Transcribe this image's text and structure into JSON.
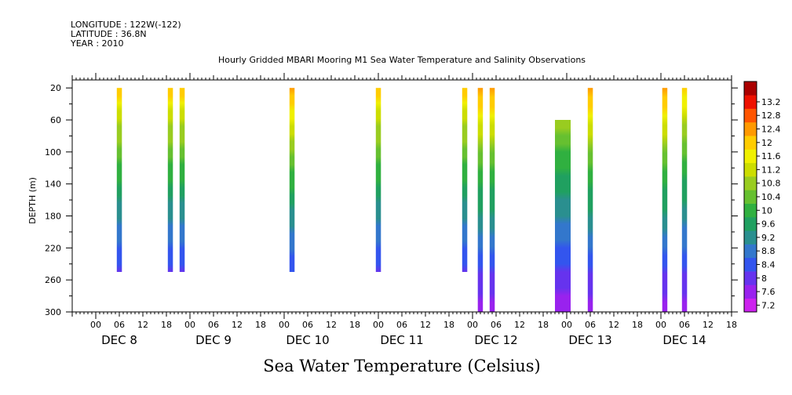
{
  "header": {
    "longitude": "LONGITUDE : 122W(-122)",
    "latitude": "LATITUDE : 36.8N",
    "year": "YEAR : 2010"
  },
  "chart_data": {
    "type": "heatmap",
    "title": "Hourly Gridded MBARI Mooring M1 Sea Water Temperature and Salinity Observations",
    "bottom_title": "Sea Water Temperature (Celsius)",
    "ylabel": "DEPTH (m)",
    "x_axis": {
      "range_hours": [
        -6,
        162
      ],
      "hour_tick_labels": [
        "00",
        "06",
        "12",
        "18"
      ],
      "day_labels": [
        "DEC  8",
        "DEC  9",
        "DEC 10",
        "DEC 11",
        "DEC 12",
        "DEC 13",
        "DEC 14"
      ]
    },
    "y_axis": {
      "range": [
        10,
        300
      ],
      "reversed": true,
      "ticks": [
        20,
        60,
        100,
        140,
        180,
        220,
        260,
        300
      ]
    },
    "colorbar": {
      "levels": [
        7.2,
        7.6,
        8,
        8.4,
        8.8,
        9.2,
        9.6,
        10,
        10.4,
        10.8,
        11.2,
        11.6,
        12,
        12.4,
        12.8,
        13.2
      ],
      "colors": [
        "#cc22ee",
        "#9922ee",
        "#6633ee",
        "#3355ee",
        "#3377cc",
        "#2a8f8f",
        "#20a060",
        "#30b040",
        "#66c030",
        "#99cc20",
        "#ccdd00",
        "#f0f000",
        "#ffcc00",
        "#ff9900",
        "#ff5500",
        "#ee1100",
        "#aa0000"
      ]
    },
    "profiles": [
      {
        "hour": 6,
        "depth_top": 20,
        "depth_bottom": 250,
        "surface_temp": 12.0
      },
      {
        "hour": 19,
        "depth_top": 20,
        "depth_bottom": 250,
        "surface_temp": 12.0
      },
      {
        "hour": 22,
        "depth_top": 20,
        "depth_bottom": 250,
        "surface_temp": 12.0
      },
      {
        "hour": 50,
        "depth_top": 20,
        "depth_bottom": 250,
        "surface_temp": 12.4
      },
      {
        "hour": 72,
        "depth_top": 20,
        "depth_bottom": 250,
        "surface_temp": 12.0
      },
      {
        "hour": 94,
        "depth_top": 20,
        "depth_bottom": 250,
        "surface_temp": 12.0
      },
      {
        "hour": 98,
        "depth_top": 20,
        "depth_bottom": 300,
        "surface_temp": 12.4
      },
      {
        "hour": 101,
        "depth_top": 20,
        "depth_bottom": 300,
        "surface_temp": 12.4
      },
      {
        "hour": 119,
        "depth_top": 60,
        "depth_bottom": 300,
        "surface_temp": 11.6,
        "width_hours": 4
      },
      {
        "hour": 126,
        "depth_top": 20,
        "depth_bottom": 300,
        "surface_temp": 12.4
      },
      {
        "hour": 145,
        "depth_top": 20,
        "depth_bottom": 300,
        "surface_temp": 12.4
      },
      {
        "hour": 150,
        "depth_top": 20,
        "depth_bottom": 300,
        "surface_temp": 12.0
      }
    ]
  }
}
